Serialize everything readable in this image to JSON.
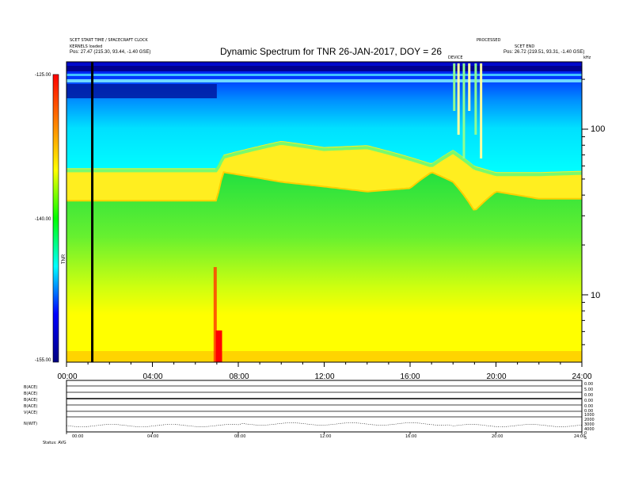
{
  "header": {
    "left_line1": "SCET START TIME / SPACECRAFT CLOCK",
    "left_line2": "KERNELS loaded",
    "left_line3_label": "Pos:",
    "left_line3_value": "27.47 (215.30, 93.44, -1.40 GSE)",
    "right_line1": "PROCESSED",
    "right_line2": "SCET END",
    "right_line3_label": "Pos:",
    "right_line3_value": "26.72 (219.51, 93.31, -1.40 GSE)",
    "spike_label": "DEVICE",
    "corner_label": "kHz"
  },
  "chart_data": {
    "type": "heatmap",
    "title": "Dynamic Spectrum for TNR 26-JAN-2017, DOY = 26",
    "x_ticks": [
      "00:00",
      "04:00",
      "08:00",
      "12:00",
      "16:00",
      "20:00",
      "24:00"
    ],
    "xlim_hours": [
      0,
      24
    ],
    "y_scale": "log",
    "y_tick_labels": [
      "100",
      "10"
    ],
    "y_ticks": [
      100,
      10
    ],
    "colorbar": {
      "label": "TNR",
      "tick_labels": [
        "-125.00",
        "-140.00",
        "-155.00"
      ],
      "ticks": [
        -125,
        -140,
        -155
      ],
      "range": [
        -155,
        -125
      ],
      "colors": [
        "#000080",
        "#0000ff",
        "#00ffff",
        "#00ff00",
        "#ffff00",
        "#ff8000",
        "#ff0000"
      ]
    },
    "data_gap_marker_hour": 1.2,
    "spectral_features": [
      {
        "name": "lower band edge",
        "hours": [
          0,
          7,
          7.3,
          10,
          12,
          14,
          16,
          17,
          18,
          19,
          20,
          22,
          24
        ],
        "freq_khz": [
          37,
          37,
          55,
          48,
          45,
          42,
          44,
          55,
          48,
          32,
          42,
          38,
          38
        ]
      },
      {
        "name": "upper band edge",
        "hours": [
          0,
          7,
          7.3,
          10,
          12,
          14,
          16,
          17,
          18,
          19,
          20,
          22,
          24
        ],
        "freq_khz": [
          58,
          58,
          70,
          85,
          78,
          80,
          68,
          62,
          75,
          60,
          55,
          55,
          56
        ]
      }
    ]
  },
  "aux_panel": {
    "row_labels": [
      "B(ACE)",
      "B(ACE)",
      "B(ACE)",
      "B(ACE)",
      "V(ACE)",
      "N(WIT)"
    ],
    "right_labels": [
      "0.00",
      "5.00",
      "0.00",
      "0.00",
      "0.00",
      "0.00",
      "1000",
      "2000",
      "3000",
      "4000",
      "0",
      "5"
    ],
    "x_ticks": [
      "00:00",
      "04:00",
      "08:00",
      "12:00",
      "16:00",
      "20:00",
      "24:00"
    ],
    "footer_label": "Status:",
    "footer_value": "AVG"
  }
}
